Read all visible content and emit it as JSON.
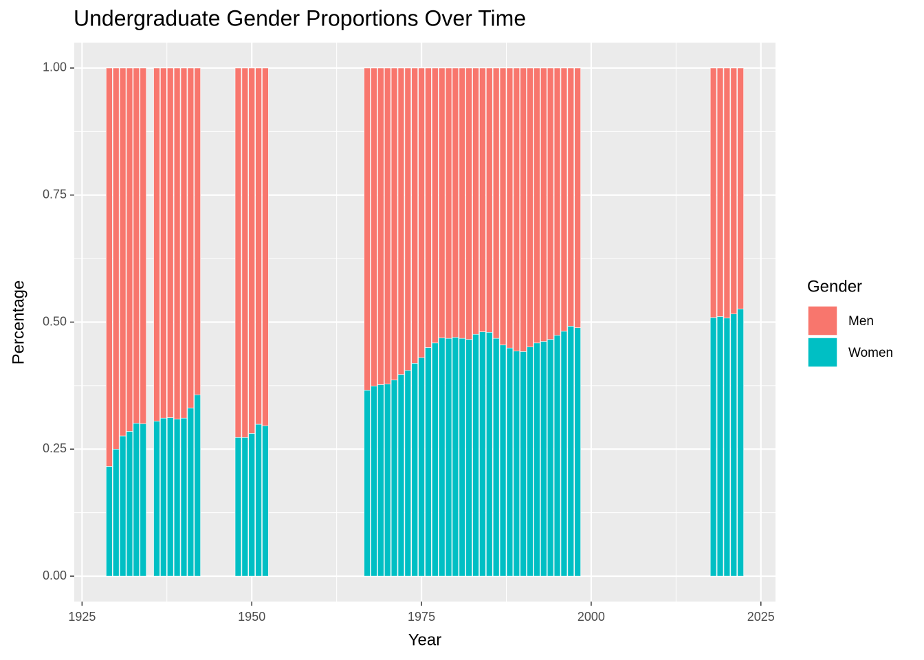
{
  "chart_data": {
    "type": "stacked_bar",
    "title": "Undergraduate Gender Proportions Over Time",
    "x_label": "Year",
    "y_label": "Percentage",
    "legend_title": "Gender",
    "x": [
      1929,
      1930,
      1931,
      1932,
      1933,
      1934,
      1936,
      1937,
      1938,
      1939,
      1940,
      1941,
      1942,
      1948,
      1949,
      1950,
      1951,
      1952,
      1967,
      1968,
      1969,
      1970,
      1971,
      1972,
      1973,
      1974,
      1975,
      1976,
      1977,
      1978,
      1979,
      1980,
      1981,
      1982,
      1983,
      1984,
      1985,
      1986,
      1987,
      1988,
      1989,
      1990,
      1991,
      1992,
      1993,
      1994,
      1995,
      1996,
      1997,
      1998,
      2018,
      2019,
      2020,
      2021,
      2022
    ],
    "series": [
      {
        "name": "Men",
        "color": "#F8766D",
        "values": [
          0.784,
          0.75,
          0.724,
          0.715,
          0.699,
          0.7,
          0.695,
          0.689,
          0.688,
          0.691,
          0.689,
          0.669,
          0.643,
          0.727,
          0.727,
          0.719,
          0.701,
          0.704,
          0.634,
          0.626,
          0.623,
          0.622,
          0.614,
          0.603,
          0.595,
          0.581,
          0.57,
          0.55,
          0.541,
          0.531,
          0.532,
          0.53,
          0.532,
          0.534,
          0.524,
          0.519,
          0.52,
          0.532,
          0.545,
          0.551,
          0.557,
          0.558,
          0.549,
          0.541,
          0.538,
          0.534,
          0.526,
          0.518,
          0.508,
          0.511,
          0.491,
          0.489,
          0.492,
          0.484,
          0.474
        ]
      },
      {
        "name": "Women",
        "color": "#00BFC4",
        "values": [
          0.216,
          0.25,
          0.276,
          0.285,
          0.301,
          0.3,
          0.305,
          0.311,
          0.312,
          0.309,
          0.311,
          0.331,
          0.357,
          0.273,
          0.273,
          0.281,
          0.299,
          0.296,
          0.366,
          0.374,
          0.377,
          0.378,
          0.386,
          0.397,
          0.405,
          0.419,
          0.43,
          0.45,
          0.459,
          0.469,
          0.468,
          0.47,
          0.468,
          0.466,
          0.476,
          0.481,
          0.48,
          0.468,
          0.455,
          0.449,
          0.443,
          0.442,
          0.451,
          0.459,
          0.462,
          0.466,
          0.474,
          0.482,
          0.492,
          0.489,
          0.509,
          0.511,
          0.508,
          0.516,
          0.526
        ]
      }
    ],
    "xlim": [
      1923.85,
      2027.15
    ],
    "xticks": [
      1925,
      1950,
      1975,
      2000,
      2025
    ],
    "ylim": [
      -0.05,
      1.05
    ],
    "yticks": [
      {
        "value": 0,
        "label": "0.00"
      },
      {
        "value": 0.25,
        "label": "0.25"
      },
      {
        "value": 0.5,
        "label": "0.50"
      },
      {
        "value": 0.75,
        "label": "0.75"
      },
      {
        "value": 1,
        "label": "1.00"
      }
    ],
    "grid": true
  }
}
